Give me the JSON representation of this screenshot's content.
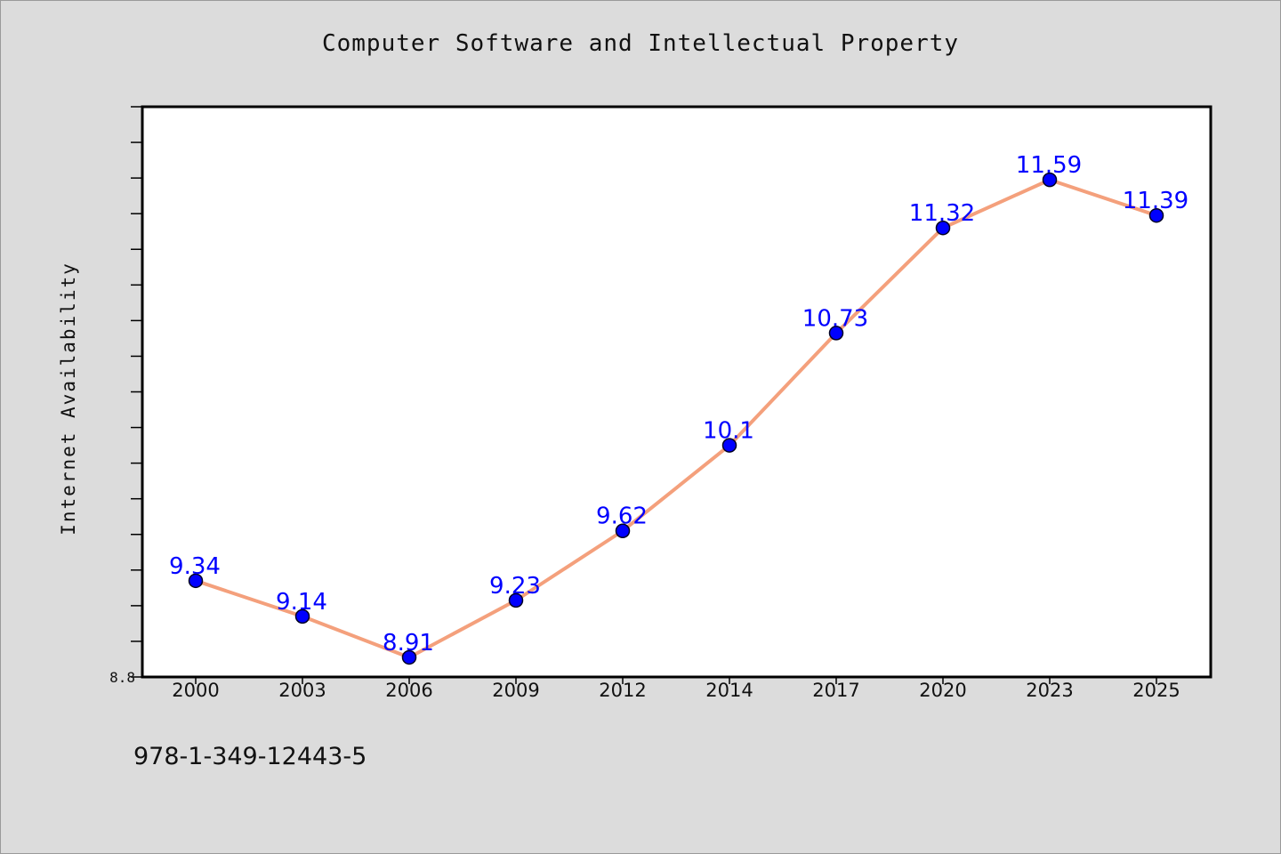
{
  "chart_data": {
    "type": "line",
    "title": "Computer Software and Intellectual Property",
    "xlabel": "",
    "ylabel": "Internet Availability",
    "categories": [
      "2000",
      "2003",
      "2006",
      "2009",
      "2012",
      "2014",
      "2017",
      "2020",
      "2023",
      "2025"
    ],
    "series": [
      {
        "values": [
          9.34,
          9.14,
          8.91,
          9.23,
          9.62,
          10.1,
          10.73,
          11.32,
          11.59,
          11.39
        ]
      }
    ],
    "data_labels": [
      "9.34",
      "9.14",
      "8.91",
      "9.23",
      "9.62",
      "10.1",
      "10.73",
      "11.32",
      "11.59",
      "11.39"
    ],
    "y_min_label": "8.8",
    "ylim": [
      8.8,
      12.0
    ],
    "grid": false,
    "colors": {
      "line": "#f4a07c",
      "marker": "#0000ff",
      "data_label": "#0000ff",
      "plot_background": "#ffffff",
      "figure_background": "#dcdcdc"
    }
  },
  "annotation": {
    "isbn": "978-1-349-12443-5"
  }
}
